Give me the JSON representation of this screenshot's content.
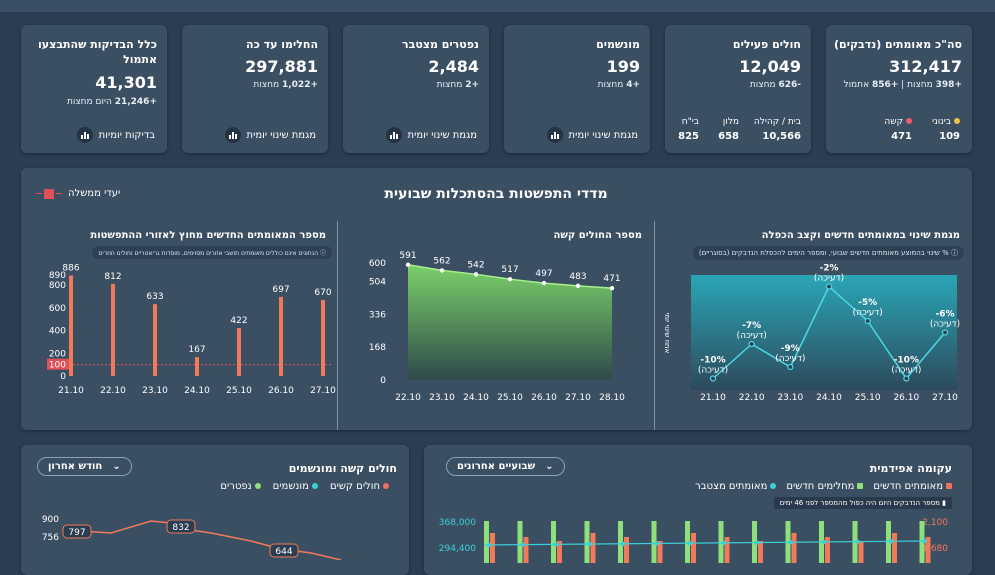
{
  "kpis": [
    {
      "title": "סה\"כ מאומתים (נדבקים)",
      "value": "312,417",
      "sub_prefix": "+398",
      "sub": "מחצות",
      "sub2_prefix": "+856",
      "sub2": "אתמול",
      "moderate_label": "בינוני",
      "severe_label": "קשה",
      "moderate_value": "109",
      "severe_value": "471"
    },
    {
      "title": "חולים פעילים",
      "value": "12,049",
      "sub_prefix": "-626",
      "sub": "מחצות",
      "home_label": "בית / קהילה",
      "hotel_label": "מלון",
      "hospital_label": "בי\"ח",
      "home_value": "10,566",
      "hotel_value": "658",
      "hospital_value": "825"
    },
    {
      "title": "מונשמים",
      "value": "199",
      "sub_prefix": "+4",
      "sub": "מחצות",
      "button": "מגמת שינוי יומית"
    },
    {
      "title": "נפטרים מצטבר",
      "value": "2,484",
      "sub_prefix": "+2",
      "sub": "מחצות",
      "button": "מגמת שינוי יומית"
    },
    {
      "title": "החלימו עד כה",
      "value": "297,881",
      "sub_prefix": "+1,022",
      "sub": "מחצות",
      "button": "מגמת שינוי יומית"
    },
    {
      "title": "כלל הבדיקות שהתבצעו אתמול",
      "value": "41,301",
      "sub_prefix": "+21,246",
      "sub": "היום מחצות",
      "button": "בדיקות יומיות"
    }
  ],
  "spread": {
    "title": "מדדי התפשטות בהסתכלות שבועית",
    "legend": "יעדי ממשלה",
    "panel1": {
      "title": "מגמת שינוי במאומתים חדשים וקצב הכפלה",
      "note": "% שינוי בהמוצע מאומתים חדשים שבועי, ומספר הימים להכפלת הנדבקים (בסוגריים)",
      "ylabel": "אחוז שינוי יומי"
    },
    "panel2": {
      "title": "מספר החולים קשה"
    },
    "panel3": {
      "title": "מספר המאומתים החדשים מחוץ לאזורי ההתפשטות",
      "note": "הנתונים אינם כוללים מאומתים תושבי אזורים מסוימים, מוסדות גריאטריים וחולים חוזרים"
    }
  },
  "bottom_left": {
    "title": "חולים קשה ומונשמים",
    "dropdown": "חודש אחרון",
    "legend": [
      "חולים קשים",
      "מונשמים",
      "נפטרים"
    ]
  },
  "bottom_right": {
    "title": "עקומה אפידמית",
    "dropdown": "שבועיים אחרונים",
    "legend": [
      "מאומתים חדשים",
      "מחלימים חדשים",
      "מאומתים מצטבר"
    ],
    "note": "מספר הנדבקים היום היה כפול מהמספר לפני 46 ימים"
  },
  "chart_data": [
    {
      "type": "line",
      "title": "מגמת שינוי במאומתים חדשים וקצב הכפלה",
      "categories": [
        "21.10",
        "22.10",
        "23.10",
        "24.10",
        "25.10",
        "26.10",
        "27.10"
      ],
      "series": [
        {
          "values": [
            -10,
            -7,
            -9,
            -2,
            -5,
            -10,
            -6
          ]
        }
      ],
      "labels": [
        "-10%",
        "-7%",
        "-9%",
        "-2%",
        "-5%",
        "-10%",
        "-6%"
      ],
      "sublabels": [
        "(דעיכה)",
        "(דעיכה)",
        "(דעיכה)",
        "(דעיכה)",
        "(דעיכה)",
        "(דעיכה)",
        "(דעיכה)"
      ]
    },
    {
      "type": "area",
      "title": "מספר החולים קשה",
      "categories": [
        "22.10",
        "23.10",
        "24.10",
        "25.10",
        "26.10",
        "27.10",
        "28.10"
      ],
      "series": [
        {
          "values": [
            591,
            562,
            542,
            517,
            497,
            483,
            471
          ]
        }
      ],
      "yticks": [
        "0",
        "168",
        "336",
        "504",
        "600"
      ],
      "ylim": [
        0,
        600
      ]
    },
    {
      "type": "bar",
      "title": "מספר המאומתים החדשים מחוץ לאזורי ההתפשטות",
      "categories": [
        "21.10",
        "22.10",
        "23.10",
        "24.10",
        "25.10",
        "26.10",
        "27.10"
      ],
      "series": [
        {
          "values": [
            886,
            812,
            633,
            167,
            422,
            697,
            670
          ]
        }
      ],
      "yticks": [
        "0",
        "100",
        "200",
        "400",
        "600",
        "800",
        "890"
      ],
      "target": 100,
      "ylim": [
        0,
        890
      ]
    },
    {
      "type": "line",
      "title": "חולים קשה ומונשמים",
      "yticks": [
        "756",
        "900"
      ],
      "labels": [
        "797",
        "832",
        "644"
      ]
    },
    {
      "type": "bar",
      "title": "עקומה אפידמית",
      "yticks_left": [
        "294,400",
        "368,000"
      ],
      "yticks_right": [
        "1,680",
        "2,100"
      ]
    }
  ]
}
